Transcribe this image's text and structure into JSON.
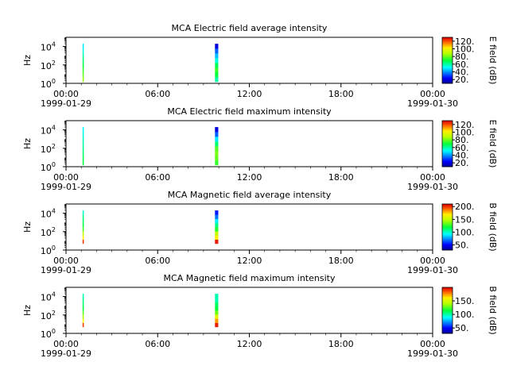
{
  "chart_data": [
    {
      "type": "heatmap",
      "title": "MCA  Electric field average intensity",
      "ylabel": "Hz",
      "yscale": "log",
      "ylim": [
        1,
        100000
      ],
      "y_ticks": [
        {
          "base": "10",
          "exp": "0"
        },
        {
          "base": "10",
          "exp": "2"
        },
        {
          "base": "10",
          "exp": "4"
        }
      ],
      "xlim": [
        "1999-01-29T00:00",
        "1999-01-30T00:00"
      ],
      "x_ticks": [
        {
          "time": "00:00",
          "date": "1999-01-29"
        },
        {
          "time": "06:00",
          "date": ""
        },
        {
          "time": "12:00",
          "date": ""
        },
        {
          "time": "18:00",
          "date": ""
        },
        {
          "time": "00:00",
          "date": "1999-01-30"
        }
      ],
      "colorbar": {
        "label": "E field (dB)",
        "min": 10,
        "max": 130,
        "ticks": [
          "20.",
          "40.",
          "60.",
          "80.",
          "100.",
          "120."
        ]
      },
      "segments": [
        {
          "start": "1999-01-29T01:05",
          "end": "1999-01-29T01:10",
          "freq_range": [
            1.5,
            20000
          ],
          "levels_low_to_high_freq": [
            85,
            80,
            75,
            70,
            65,
            60,
            55,
            50
          ]
        },
        {
          "start": "1999-01-29T09:45",
          "end": "1999-01-29T09:58",
          "freq_range": [
            1.5,
            20000
          ],
          "levels_low_to_high_freq": [
            60,
            70,
            75,
            68,
            55,
            45,
            35,
            20
          ]
        }
      ]
    },
    {
      "type": "heatmap",
      "title": "MCA  Electric field maximum intensity",
      "ylabel": "Hz",
      "yscale": "log",
      "ylim": [
        1,
        100000
      ],
      "y_ticks": [
        {
          "base": "10",
          "exp": "0"
        },
        {
          "base": "10",
          "exp": "2"
        },
        {
          "base": "10",
          "exp": "4"
        }
      ],
      "xlim": [
        "1999-01-29T00:00",
        "1999-01-30T00:00"
      ],
      "x_ticks": [
        {
          "time": "00:00",
          "date": "1999-01-29"
        },
        {
          "time": "06:00",
          "date": ""
        },
        {
          "time": "12:00",
          "date": ""
        },
        {
          "time": "18:00",
          "date": ""
        },
        {
          "time": "00:00",
          "date": "1999-01-30"
        }
      ],
      "colorbar": {
        "label": "E field (dB)",
        "min": 10,
        "max": 130,
        "ticks": [
          "20.",
          "40.",
          "60.",
          "80.",
          "100.",
          "120."
        ]
      },
      "segments": [
        {
          "start": "1999-01-29T01:05",
          "end": "1999-01-29T01:10",
          "freq_range": [
            1.5,
            20000
          ],
          "levels_low_to_high_freq": [
            70,
            68,
            65,
            62,
            60,
            58,
            55,
            52
          ]
        },
        {
          "start": "1999-01-29T09:45",
          "end": "1999-01-29T09:58",
          "freq_range": [
            1.5,
            20000
          ],
          "levels_low_to_high_freq": [
            75,
            80,
            82,
            78,
            65,
            50,
            35,
            20
          ]
        }
      ]
    },
    {
      "type": "heatmap",
      "title": "MCA  Magnetic field average intensity",
      "ylabel": "Hz",
      "yscale": "log",
      "ylim": [
        1,
        100000
      ],
      "y_ticks": [
        {
          "base": "10",
          "exp": "0"
        },
        {
          "base": "10",
          "exp": "2"
        },
        {
          "base": "10",
          "exp": "4"
        }
      ],
      "xlim": [
        "1999-01-29T00:00",
        "1999-01-30T00:00"
      ],
      "x_ticks": [
        {
          "time": "00:00",
          "date": "1999-01-29"
        },
        {
          "time": "06:00",
          "date": ""
        },
        {
          "time": "12:00",
          "date": ""
        },
        {
          "time": "18:00",
          "date": ""
        },
        {
          "time": "00:00",
          "date": "1999-01-30"
        }
      ],
      "colorbar": {
        "label": "B field (dB)",
        "min": 30,
        "max": 210,
        "ticks": [
          "50.",
          "100.",
          "150.",
          "200."
        ]
      },
      "segments": [
        {
          "start": "1999-01-29T01:05",
          "end": "1999-01-29T01:10",
          "freq_range": [
            5,
            20000
          ],
          "levels_low_to_high_freq": [
            200,
            170,
            150,
            130,
            120,
            115,
            110,
            100
          ]
        },
        {
          "start": "1999-01-29T09:45",
          "end": "1999-01-29T09:58",
          "freq_range": [
            5,
            20000
          ],
          "levels_low_to_high_freq": [
            205,
            170,
            150,
            125,
            110,
            90,
            70,
            55
          ]
        }
      ]
    },
    {
      "type": "heatmap",
      "title": "MCA  Magnetic field maximum intensity",
      "ylabel": "Hz",
      "yscale": "log",
      "ylim": [
        1,
        100000
      ],
      "y_ticks": [
        {
          "base": "10",
          "exp": "0"
        },
        {
          "base": "10",
          "exp": "2"
        },
        {
          "base": "10",
          "exp": "4"
        }
      ],
      "xlim": [
        "1999-01-29T00:00",
        "1999-01-30T00:00"
      ],
      "x_ticks": [
        {
          "time": "00:00",
          "date": "1999-01-29"
        },
        {
          "time": "06:00",
          "date": ""
        },
        {
          "time": "12:00",
          "date": ""
        },
        {
          "time": "18:00",
          "date": ""
        },
        {
          "time": "00:00",
          "date": "1999-01-30"
        }
      ],
      "colorbar": {
        "label": "B field (dB)",
        "min": 30,
        "max": 200,
        "ticks": [
          "50.",
          "100.",
          "150."
        ]
      },
      "segments": [
        {
          "start": "1999-01-29T01:05",
          "end": "1999-01-29T01:10",
          "freq_range": [
            5,
            20000
          ],
          "levels_low_to_high_freq": [
            190,
            160,
            140,
            125,
            115,
            110,
            105,
            100
          ]
        },
        {
          "start": "1999-01-29T09:45",
          "end": "1999-01-29T09:58",
          "freq_range": [
            5,
            20000
          ],
          "levels_low_to_high_freq": [
            195,
            175,
            155,
            130,
            115,
            110,
            100,
            100
          ]
        }
      ]
    }
  ]
}
